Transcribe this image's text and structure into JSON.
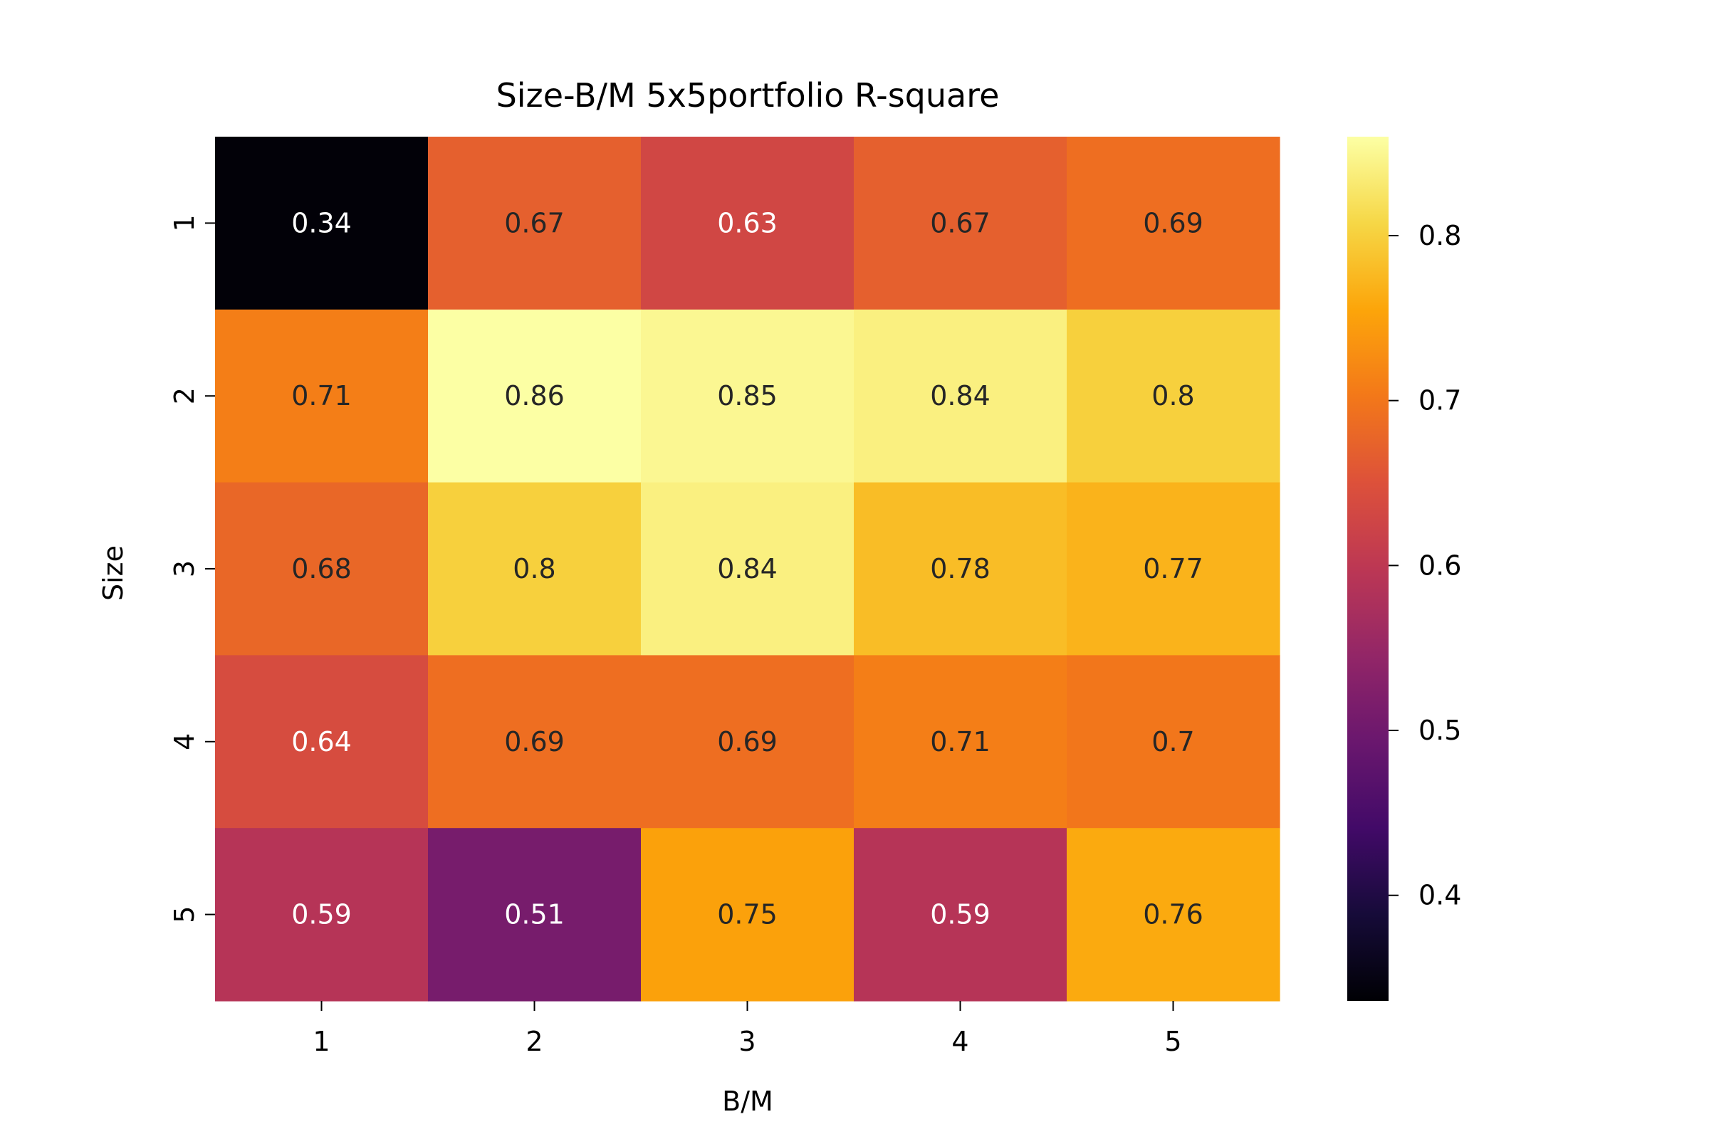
{
  "chart_data": {
    "type": "heatmap",
    "title": "Size-B/M 5x5portfolio R-square",
    "xlabel": "B/M",
    "ylabel": "Size",
    "x_categories": [
      "1",
      "2",
      "3",
      "4",
      "5"
    ],
    "y_categories": [
      "1",
      "2",
      "3",
      "4",
      "5"
    ],
    "values": [
      [
        0.34,
        0.67,
        0.63,
        0.67,
        0.69
      ],
      [
        0.71,
        0.86,
        0.85,
        0.84,
        0.8
      ],
      [
        0.68,
        0.8,
        0.84,
        0.78,
        0.77
      ],
      [
        0.64,
        0.69,
        0.69,
        0.71,
        0.7
      ],
      [
        0.59,
        0.51,
        0.75,
        0.59,
        0.76
      ]
    ],
    "cell_labels": [
      [
        "0.34",
        "0.67",
        "0.63",
        "0.67",
        "0.69"
      ],
      [
        "0.71",
        "0.86",
        "0.85",
        "0.84",
        "0.8"
      ],
      [
        "0.68",
        "0.8",
        "0.84",
        "0.78",
        "0.77"
      ],
      [
        "0.64",
        "0.69",
        "0.69",
        "0.71",
        "0.7"
      ],
      [
        "0.59",
        "0.51",
        "0.75",
        "0.59",
        "0.76"
      ]
    ],
    "colormap": "inferno",
    "colorbar": {
      "vmin": 0.336,
      "vmax": 0.86,
      "ticks": [
        0.4,
        0.5,
        0.6,
        0.7,
        0.8
      ],
      "tick_labels": [
        "0.4",
        "0.5",
        "0.6",
        "0.7",
        "0.8"
      ]
    },
    "annotation_colors": {
      "light": "#ffffff",
      "dark": "#262626"
    }
  }
}
